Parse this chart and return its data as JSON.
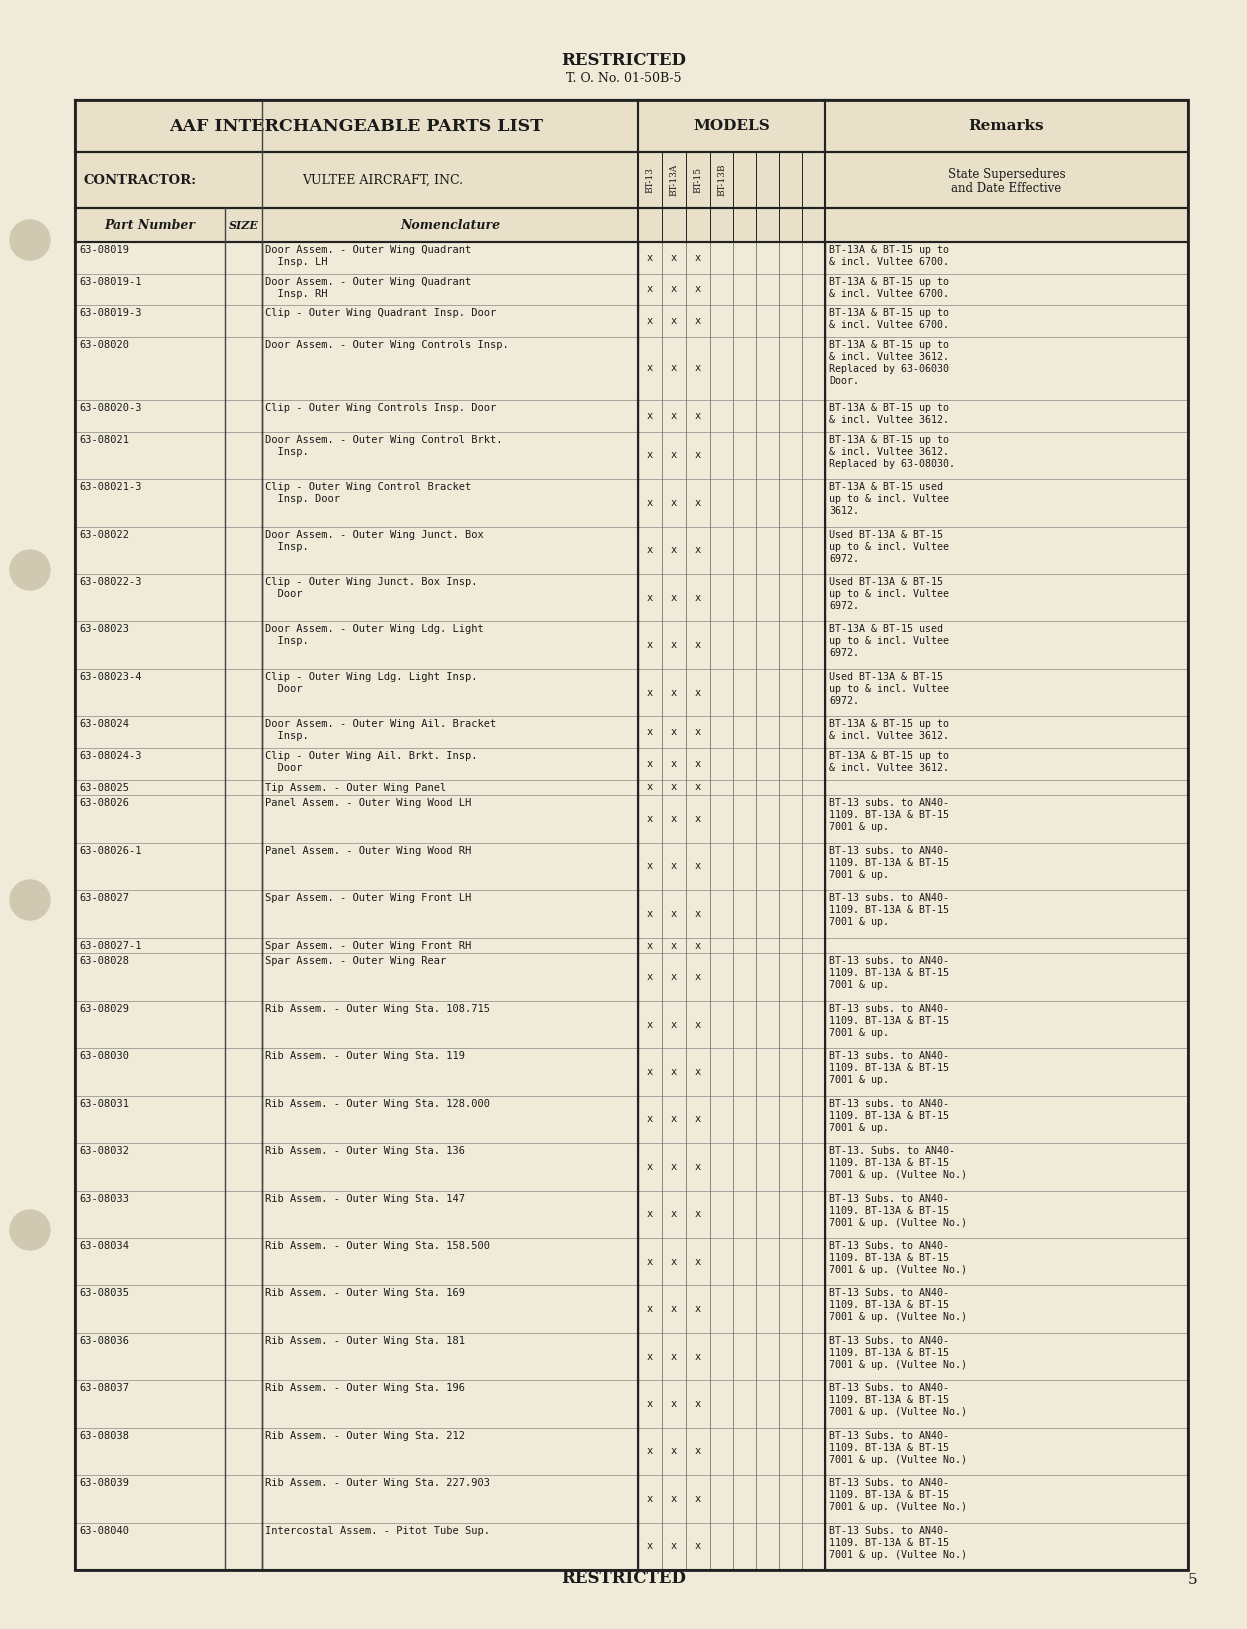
{
  "bg_color": "#f0ead8",
  "text_color": "#1a1a1a",
  "page_title_top": "RESTRICTED",
  "page_subtitle_top": "T. O. No. 01-50B-5",
  "page_title_bottom": "RESTRICTED",
  "page_number": "5",
  "header_left": "AAF INTERCHANGEABLE PARTS LIST",
  "header_models": "MODELS",
  "header_remarks": "Remarks",
  "contractor_label": "CONTRACTOR:",
  "contractor_value": "VULTEE AIRCRAFT, INC.",
  "col_part": "Part Number",
  "col_size": "SIZE",
  "col_nom": "Nomenclature",
  "col_remarks_sub1": "State Supersedures",
  "col_remarks_sub2": "and Date Effective",
  "model_labels": [
    "BT-13",
    "BT-13A",
    "BT-15",
    "BT-13B"
  ],
  "rows": [
    {
      "part": "63-08019",
      "nom": "Door Assem. - Outer Wing Quadrant\n  Insp. LH",
      "marks": [
        1,
        1,
        1,
        0
      ],
      "remarks": "BT-13A & BT-15 up to\n& incl. Vultee 6700."
    },
    {
      "part": "63-08019-1",
      "nom": "Door Assem. - Outer Wing Quadrant\n  Insp. RH",
      "marks": [
        1,
        1,
        1,
        0
      ],
      "remarks": "BT-13A & BT-15 up to\n& incl. Vultee 6700."
    },
    {
      "part": "63-08019-3",
      "nom": "Clip - Outer Wing Quadrant Insp. Door",
      "marks": [
        1,
        1,
        1,
        0
      ],
      "remarks": "BT-13A & BT-15 up to\n& incl. Vultee 6700."
    },
    {
      "part": "63-08020",
      "nom": "Door Assem. - Outer Wing Controls Insp.",
      "marks": [
        1,
        1,
        1,
        0
      ],
      "remarks": "BT-13A & BT-15 up to\n& incl. Vultee 3612.\nReplaced by 63-06030\nDoor."
    },
    {
      "part": "63-08020-3",
      "nom": "Clip - Outer Wing Controls Insp. Door",
      "marks": [
        1,
        1,
        1,
        0
      ],
      "remarks": "BT-13A & BT-15 up to\n& incl. Vultee 3612."
    },
    {
      "part": "63-08021",
      "nom": "Door Assem. - Outer Wing Control Brkt.\n  Insp.",
      "marks": [
        1,
        1,
        1,
        0
      ],
      "remarks": "BT-13A & BT-15 up to\n& incl. Vultee 3612.\nReplaced by 63-08030."
    },
    {
      "part": "63-08021-3",
      "nom": "Clip - Outer Wing Control Bracket\n  Insp. Door",
      "marks": [
        1,
        1,
        1,
        0
      ],
      "remarks": "BT-13A & BT-15 used\nup to & incl. Vultee\n3612."
    },
    {
      "part": "63-08022",
      "nom": "Door Assem. - Outer Wing Junct. Box\n  Insp.",
      "marks": [
        1,
        1,
        1,
        0
      ],
      "remarks": "Used BT-13A & BT-15\nup to & incl. Vultee\n6972."
    },
    {
      "part": "63-08022-3",
      "nom": "Clip - Outer Wing Junct. Box Insp.\n  Door",
      "marks": [
        1,
        1,
        1,
        0
      ],
      "remarks": "Used BT-13A & BT-15\nup to & incl. Vultee\n6972."
    },
    {
      "part": "63-08023",
      "nom": "Door Assem. - Outer Wing Ldg. Light\n  Insp.",
      "marks": [
        1,
        1,
        1,
        0
      ],
      "remarks": "BT-13A & BT-15 used\nup to & incl. Vultee\n6972."
    },
    {
      "part": "63-08023-4",
      "nom": "Clip - Outer Wing Ldg. Light Insp.\n  Door",
      "marks": [
        1,
        1,
        1,
        0
      ],
      "remarks": "Used BT-13A & BT-15\nup to & incl. Vultee\n6972."
    },
    {
      "part": "63-08024",
      "nom": "Door Assem. - Outer Wing Ail. Bracket\n  Insp.",
      "marks": [
        1,
        1,
        1,
        0
      ],
      "remarks": "BT-13A & BT-15 up to\n& incl. Vultee 3612."
    },
    {
      "part": "63-08024-3",
      "nom": "Clip - Outer Wing Ail. Brkt. Insp.\n  Door",
      "marks": [
        1,
        1,
        1,
        0
      ],
      "remarks": "BT-13A & BT-15 up to\n& incl. Vultee 3612."
    },
    {
      "part": "63-08025",
      "nom": "Tip Assem. - Outer Wing Panel",
      "marks": [
        1,
        1,
        1,
        0
      ],
      "remarks": ""
    },
    {
      "part": "63-08026",
      "nom": "Panel Assem. - Outer Wing Wood LH",
      "marks": [
        1,
        1,
        1,
        0
      ],
      "remarks": "BT-13 subs. to AN40-\n1109. BT-13A & BT-15\n7001 & up."
    },
    {
      "part": "63-08026-1",
      "nom": "Panel Assem. - Outer Wing Wood RH",
      "marks": [
        1,
        1,
        1,
        0
      ],
      "remarks": "BT-13 subs. to AN40-\n1109. BT-13A & BT-15\n7001 & up."
    },
    {
      "part": "63-08027",
      "nom": "Spar Assem. - Outer Wing Front LH",
      "marks": [
        1,
        1,
        1,
        0
      ],
      "remarks": "BT-13 subs. to AN40-\n1109. BT-13A & BT-15\n7001 & up."
    },
    {
      "part": "63-08027-1",
      "nom": "Spar Assem. - Outer Wing Front RH",
      "marks": [
        1,
        1,
        1,
        0
      ],
      "remarks": ""
    },
    {
      "part": "63-08028",
      "nom": "Spar Assem. - Outer Wing Rear",
      "marks": [
        1,
        1,
        1,
        0
      ],
      "remarks": "BT-13 subs. to AN40-\n1109. BT-13A & BT-15\n7001 & up."
    },
    {
      "part": "63-08029",
      "nom": "Rib Assem. - Outer Wing Sta. 108.715",
      "marks": [
        1,
        1,
        1,
        0
      ],
      "remarks": "BT-13 subs. to AN40-\n1109. BT-13A & BT-15\n7001 & up."
    },
    {
      "part": "63-08030",
      "nom": "Rib Assem. - Outer Wing Sta. 119",
      "marks": [
        1,
        1,
        1,
        0
      ],
      "remarks": "BT-13 subs. to AN40-\n1109. BT-13A & BT-15\n7001 & up."
    },
    {
      "part": "63-08031",
      "nom": "Rib Assem. - Outer Wing Sta. 128.000",
      "marks": [
        1,
        1,
        1,
        0
      ],
      "remarks": "BT-13 subs. to AN40-\n1109. BT-13A & BT-15\n7001 & up."
    },
    {
      "part": "63-08032",
      "nom": "Rib Assem. - Outer Wing Sta. 136",
      "marks": [
        1,
        1,
        1,
        0
      ],
      "remarks": "BT-13. Subs. to AN40-\n1109. BT-13A & BT-15\n7001 & up. (Vultee No.)"
    },
    {
      "part": "63-08033",
      "nom": "Rib Assem. - Outer Wing Sta. 147",
      "marks": [
        1,
        1,
        1,
        0
      ],
      "remarks": "BT-13 Subs. to AN40-\n1109. BT-13A & BT-15\n7001 & up. (Vultee No.)"
    },
    {
      "part": "63-08034",
      "nom": "Rib Assem. - Outer Wing Sta. 158.500",
      "marks": [
        1,
        1,
        1,
        0
      ],
      "remarks": "BT-13 Subs. to AN40-\n1109. BT-13A & BT-15\n7001 & up. (Vultee No.)"
    },
    {
      "part": "63-08035",
      "nom": "Rib Assem. - Outer Wing Sta. 169",
      "marks": [
        1,
        1,
        1,
        0
      ],
      "remarks": "BT-13 Subs. to AN40-\n1109. BT-13A & BT-15\n7001 & up. (Vultee No.)"
    },
    {
      "part": "63-08036",
      "nom": "Rib Assem. - Outer Wing Sta. 181",
      "marks": [
        1,
        1,
        1,
        0
      ],
      "remarks": "BT-13 Subs. to AN40-\n1109. BT-13A & BT-15\n7001 & up. (Vultee No.)"
    },
    {
      "part": "63-08037",
      "nom": "Rib Assem. - Outer Wing Sta. 196",
      "marks": [
        1,
        1,
        1,
        0
      ],
      "remarks": "BT-13 Subs. to AN40-\n1109. BT-13A & BT-15\n7001 & up. (Vultee No.)"
    },
    {
      "part": "63-08038",
      "nom": "Rib Assem. - Outer Wing Sta. 212",
      "marks": [
        1,
        1,
        1,
        0
      ],
      "remarks": "BT-13 Subs. to AN40-\n1109. BT-13A & BT-15\n7001 & up. (Vultee No.)"
    },
    {
      "part": "63-08039",
      "nom": "Rib Assem. - Outer Wing Sta. 227.903",
      "marks": [
        1,
        1,
        1,
        0
      ],
      "remarks": "BT-13 Subs. to AN40-\n1109. BT-13A & BT-15\n7001 & up. (Vultee No.)"
    },
    {
      "part": "63-08040",
      "nom": "Intercostal Assem. - Pitot Tube Sup.",
      "marks": [
        1,
        1,
        1,
        0
      ],
      "remarks": "BT-13 Subs. to AN40-\n1109. BT-13A & BT-15\n7001 & up. (Vultee No.)"
    }
  ]
}
